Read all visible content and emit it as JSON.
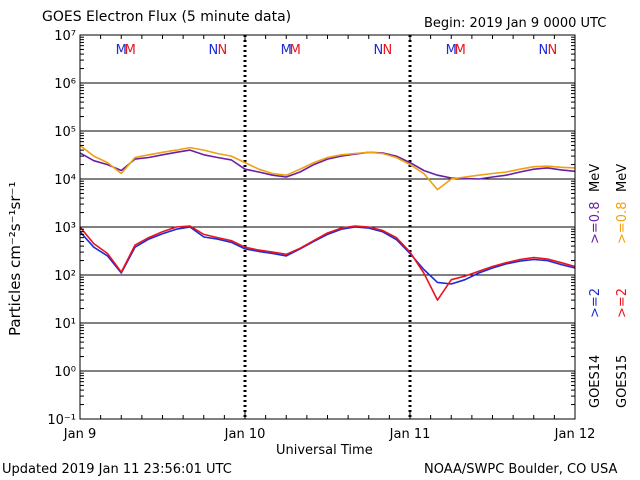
{
  "header": {
    "title": "GOES Electron Flux (5 minute data)",
    "begin": "Begin: 2019 Jan 9 0000 UTC"
  },
  "footer": {
    "updated": "Updated 2019 Jan 11 23:56:01 UTC",
    "credit": "NOAA/SWPC Boulder, CO USA"
  },
  "colors": {
    "goes14_2mev": "#1f2bd6",
    "goes15_2mev": "#e8141e",
    "goes14_08mev": "#6a1fa8",
    "goes15_08mev": "#f0a010",
    "midnight_marker": "#1f2bd6",
    "noon_marker": "#e8141e"
  },
  "chart_data": {
    "type": "line",
    "xlabel": "Universal Time",
    "ylabel": "Particles cm⁻²s⁻¹sr⁻¹",
    "y_scale": "log",
    "ylim": [
      0.1,
      10000000
    ],
    "y_ticks": [
      "10⁻¹",
      "10⁰",
      "10¹",
      "10²",
      "10³",
      "10⁴",
      "10⁵",
      "10⁶",
      "10⁷"
    ],
    "xlim": [
      "Jan 9",
      "Jan 12"
    ],
    "x_ticks": [
      "Jan 9",
      "Jan 10",
      "Jan 11",
      "Jan 12"
    ],
    "threshold_line": 1000,
    "grid": "horizontal at each decade",
    "marker_rows": [
      {
        "labels": [
          "M",
          "M",
          "N",
          "N"
        ],
        "day": "Jan 9"
      },
      {
        "labels": [
          "M",
          "M",
          "N",
          "N"
        ],
        "day": "Jan 10"
      },
      {
        "labels": [
          "M",
          "M",
          "N",
          "N"
        ],
        "day": "Jan 11"
      }
    ],
    "marker_times_hours": [
      6.0,
      7.3,
      19.4,
      20.7,
      30.0,
      31.3,
      43.4,
      44.7,
      54.0,
      55.3,
      67.4,
      68.7
    ],
    "marker_letters": [
      "M",
      "M",
      "N",
      "N",
      "M",
      "M",
      "N",
      "N",
      "M",
      "M",
      "N",
      "N"
    ],
    "marker_colors": [
      "#1f2bd6",
      "#e8141e",
      "#1f2bd6",
      "#e8141e",
      "#1f2bd6",
      "#e8141e",
      "#1f2bd6",
      "#e8141e",
      "#1f2bd6",
      "#e8141e",
      "#1f2bd6",
      "#e8141e"
    ],
    "legend": {
      "satellites": [
        "GOES14",
        "GOES15"
      ],
      "channels": [
        ">=2",
        ">=0.8",
        "MeV"
      ],
      "entries": [
        {
          "satellite": "GOES14",
          "channel": ">=2",
          "color": "#1f2bd6"
        },
        {
          "satellite": "GOES14",
          "channel": ">=0.8",
          "color": "#6a1fa8"
        },
        {
          "satellite": "GOES15",
          "channel": ">=2",
          "color": "#e8141e"
        },
        {
          "satellite": "GOES15",
          "channel": ">=0.8",
          "color": "#f0a010"
        }
      ]
    },
    "x_hours": [
      0,
      2,
      4,
      6,
      8,
      10,
      12,
      14,
      16,
      18,
      20,
      22,
      24,
      26,
      28,
      30,
      32,
      34,
      36,
      38,
      40,
      42,
      44,
      46,
      48,
      50,
      52,
      54,
      56,
      58,
      60,
      62,
      64,
      66,
      68,
      70,
      72
    ],
    "series": [
      {
        "name": "GOES14 >=0.8 MeV",
        "color": "#6a1fa8",
        "values": [
          35000,
          24000,
          20000,
          15000,
          26000,
          28000,
          32000,
          36000,
          40000,
          32000,
          28000,
          25000,
          16000,
          14000,
          12000,
          11000,
          14000,
          20000,
          26000,
          30000,
          33000,
          36000,
          35000,
          30000,
          22000,
          15000,
          12000,
          10500,
          10200,
          10000,
          11000,
          12000,
          14000,
          16000,
          17000,
          15500,
          14500
        ]
      },
      {
        "name": "GOES15 >=0.8 MeV",
        "color": "#f0a010",
        "values": [
          50000,
          30000,
          22000,
          13000,
          28000,
          32000,
          36000,
          40000,
          45000,
          40000,
          34000,
          30000,
          22000,
          16000,
          13000,
          12000,
          16000,
          22000,
          28000,
          32000,
          34000,
          36000,
          34000,
          28000,
          20000,
          13000,
          6000,
          10000,
          11000,
          12000,
          13000,
          14000,
          16000,
          18000,
          18500,
          17500,
          17000
        ]
      },
      {
        "name": "GOES14 >=2 MeV",
        "color": "#1f2bd6",
        "values": [
          800,
          380,
          250,
          110,
          380,
          560,
          720,
          900,
          1000,
          620,
          560,
          480,
          350,
          310,
          280,
          250,
          350,
          500,
          700,
          900,
          1000,
          950,
          800,
          550,
          280,
          130,
          70,
          65,
          80,
          110,
          140,
          170,
          195,
          210,
          200,
          165,
          140
        ]
      },
      {
        "name": "GOES15 >=2 MeV",
        "color": "#e8141e",
        "values": [
          1000,
          450,
          280,
          115,
          420,
          600,
          800,
          1000,
          1050,
          700,
          600,
          520,
          380,
          330,
          300,
          270,
          360,
          520,
          750,
          950,
          1050,
          1000,
          850,
          600,
          300,
          110,
          30,
          80,
          95,
          120,
          150,
          180,
          210,
          230,
          215,
          180,
          150
        ]
      }
    ]
  }
}
